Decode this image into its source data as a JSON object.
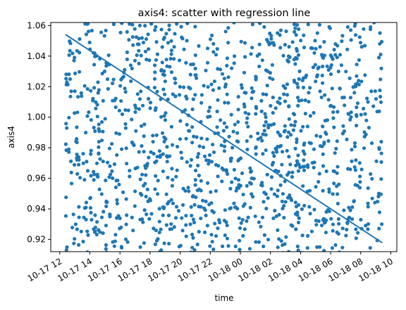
{
  "chart_data": {
    "type": "scatter",
    "title": "axis4: scatter with regression line",
    "xlabel": "time",
    "ylabel": "axis4",
    "x_axis_type": "datetime",
    "xlim": [
      "2023-10-17T11:24",
      "2023-10-18T10:24"
    ],
    "ylim": [
      0.912,
      1.062
    ],
    "x_ticks": [
      {
        "label": "10-17 12",
        "value": "2023-10-17T12:00"
      },
      {
        "label": "10-17 14",
        "value": "2023-10-17T14:00"
      },
      {
        "label": "10-17 16",
        "value": "2023-10-17T16:00"
      },
      {
        "label": "10-17 18",
        "value": "2023-10-17T18:00"
      },
      {
        "label": "10-17 20",
        "value": "2023-10-17T20:00"
      },
      {
        "label": "10-17 22",
        "value": "2023-10-17T22:00"
      },
      {
        "label": "10-18 00",
        "value": "2023-10-18T00:00"
      },
      {
        "label": "10-18 02",
        "value": "2023-10-18T02:00"
      },
      {
        "label": "10-18 04",
        "value": "2023-10-18T04:00"
      },
      {
        "label": "10-18 06",
        "value": "2023-10-18T06:00"
      },
      {
        "label": "10-18 08",
        "value": "2023-10-18T08:00"
      },
      {
        "label": "10-18 10",
        "value": "2023-10-18T10:00"
      }
    ],
    "y_ticks": [
      0.92,
      0.94,
      0.96,
      0.98,
      1.0,
      1.02,
      1.04,
      1.06
    ],
    "y_tick_labels": [
      "0.92",
      "0.94",
      "0.96",
      "0.98",
      "1.00",
      "1.02",
      "1.04",
      "1.06"
    ],
    "grid": false,
    "color": "#1f77b4",
    "scatter": {
      "x_start": "2023-10-17T12:24",
      "x_end": "2023-10-18T09:24",
      "count": 1260,
      "y_min": 0.91,
      "y_max": 1.062,
      "distribution": "uniform random"
    },
    "regression_line": {
      "start": {
        "x": "2023-10-17T12:24",
        "y": 1.054
      },
      "end": {
        "x": "2023-10-18T09:24",
        "y": 0.918
      }
    }
  }
}
